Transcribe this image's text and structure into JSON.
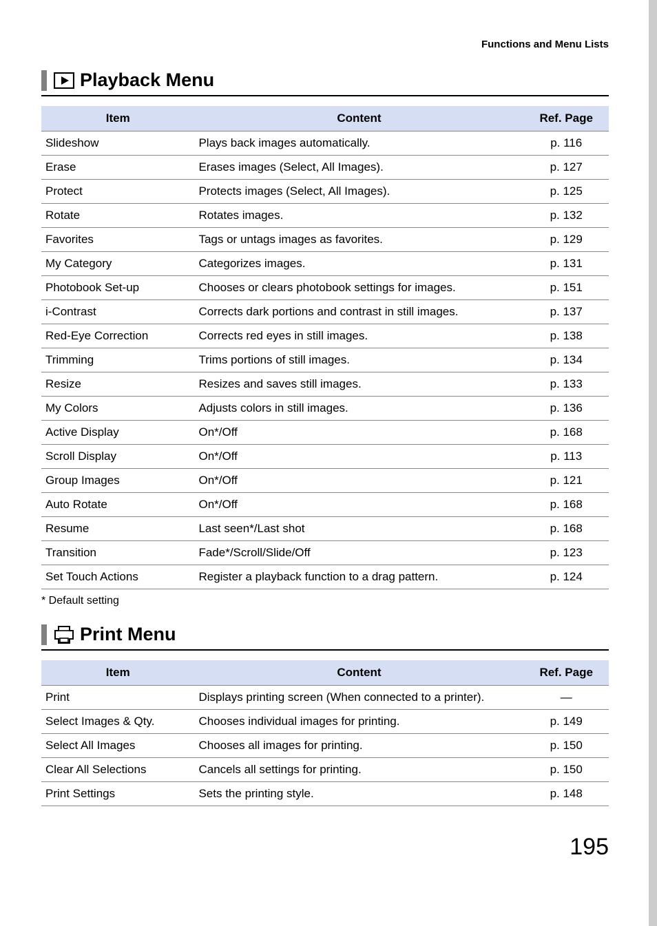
{
  "header": {
    "section_title": "Functions and Menu Lists"
  },
  "playback_menu": {
    "title": "Playback Menu",
    "columns": {
      "item": "Item",
      "content": "Content",
      "ref": "Ref. Page"
    },
    "rows": [
      {
        "item": "Slideshow",
        "content": "Plays back images automatically.",
        "ref": "p. 116"
      },
      {
        "item": "Erase",
        "content": "Erases images (Select, All Images).",
        "ref": "p. 127"
      },
      {
        "item": "Protect",
        "content": "Protects images (Select, All Images).",
        "ref": "p. 125"
      },
      {
        "item": "Rotate",
        "content": "Rotates images.",
        "ref": "p. 132"
      },
      {
        "item": "Favorites",
        "content": "Tags or untags images as favorites.",
        "ref": "p. 129"
      },
      {
        "item": "My Category",
        "content": "Categorizes images.",
        "ref": "p. 131"
      },
      {
        "item": "Photobook Set-up",
        "content": "Chooses or clears photobook settings for images.",
        "ref": "p. 151"
      },
      {
        "item": "i-Contrast",
        "content": "Corrects dark portions and contrast in still images.",
        "ref": "p. 137"
      },
      {
        "item": "Red-Eye Correction",
        "content": "Corrects red eyes in still images.",
        "ref": "p. 138"
      },
      {
        "item": "Trimming",
        "content": "Trims portions of still images.",
        "ref": "p. 134"
      },
      {
        "item": "Resize",
        "content": "Resizes and saves still images.",
        "ref": "p. 133"
      },
      {
        "item": "My Colors",
        "content": "Adjusts colors in still images.",
        "ref": "p. 136"
      },
      {
        "item": "Active Display",
        "content": "On*/Off",
        "ref": "p. 168"
      },
      {
        "item": "Scroll Display",
        "content": "On*/Off",
        "ref": "p. 113"
      },
      {
        "item": "Group Images",
        "content": "On*/Off",
        "ref": "p. 121"
      },
      {
        "item": "Auto Rotate",
        "content": "On*/Off",
        "ref": "p. 168"
      },
      {
        "item": "Resume",
        "content": "Last seen*/Last shot",
        "ref": "p. 168"
      },
      {
        "item": "Transition",
        "content": "Fade*/Scroll/Slide/Off",
        "ref": "p. 123"
      },
      {
        "item": "Set Touch Actions",
        "content": "Register a playback function to a drag pattern.",
        "ref": "p. 124"
      }
    ]
  },
  "footnote": "* Default setting",
  "print_menu": {
    "title": "Print Menu",
    "columns": {
      "item": "Item",
      "content": "Content",
      "ref": "Ref. Page"
    },
    "rows": [
      {
        "item": "Print",
        "content": "Displays printing screen (When connected to a printer).",
        "ref": "—"
      },
      {
        "item": "Select Images & Qty.",
        "content": "Chooses individual images for printing.",
        "ref": "p. 149"
      },
      {
        "item": "Select All Images",
        "content": "Chooses all images for printing.",
        "ref": "p. 150"
      },
      {
        "item": "Clear All Selections",
        "content": "Cancels all settings for printing.",
        "ref": "p. 150"
      },
      {
        "item": "Print Settings",
        "content": "Sets the printing style.",
        "ref": "p. 148"
      }
    ]
  },
  "page_number": "195"
}
